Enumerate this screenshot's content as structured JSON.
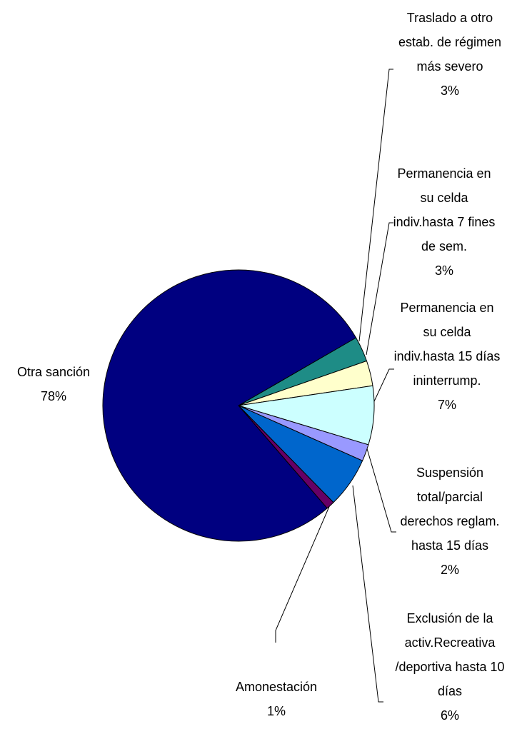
{
  "chart_data": {
    "type": "pie",
    "categories": [
      "Traslado a otro estab. de régimen más severo",
      "Permanencia en su celda indiv.hasta 7 fines de sem.",
      "Permanencia en su celda indiv.hasta 15 días ininterrump.",
      "Suspensión total/parcial derechos reglam. hasta 15 días",
      "Exclusión de la activ.Recreativa /deportiva hasta 10 días",
      "Amonestación",
      "Otra sanción"
    ],
    "values": [
      3,
      3,
      7,
      2,
      6,
      1,
      78
    ],
    "value_labels": [
      "3%",
      "3%",
      "7%",
      "2%",
      "6%",
      "1%",
      "78%"
    ],
    "colors": [
      "#1e8c86",
      "#ffffcc",
      "#ccffff",
      "#9999ff",
      "#0066cc",
      "#660066",
      "#000080"
    ]
  }
}
